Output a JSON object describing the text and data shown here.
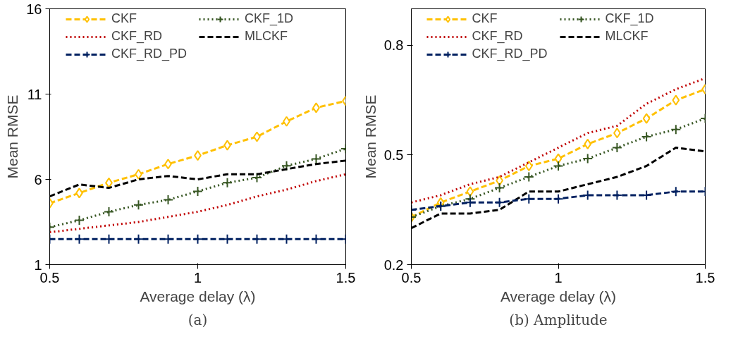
{
  "chart_data": [
    {
      "type": "line",
      "title": "(a)",
      "xlabel": "Average delay (λ)",
      "ylabel": "Mean RMSE",
      "x": [
        0.5,
        0.6,
        0.7,
        0.8,
        0.9,
        1.0,
        1.1,
        1.2,
        1.3,
        1.4,
        1.5
      ],
      "xlim": [
        0.5,
        1.5
      ],
      "xticks": [
        0.5,
        1,
        1.5
      ],
      "ylim": [
        1,
        16
      ],
      "yticks": [
        1,
        6,
        11,
        16
      ],
      "grid": false,
      "legend": "top",
      "series": [
        {
          "name": "CKF",
          "color": "#ffc000",
          "marker": "diamond",
          "line_style": "dashed",
          "values": [
            4.6,
            5.2,
            5.8,
            6.3,
            6.9,
            7.4,
            8.0,
            8.5,
            9.4,
            10.2,
            10.6
          ]
        },
        {
          "name": "CKF_1D",
          "color": "#375623",
          "marker": "cross",
          "line_style": "dotted",
          "values": [
            3.2,
            3.6,
            4.1,
            4.5,
            4.8,
            5.3,
            5.8,
            6.1,
            6.8,
            7.2,
            7.8
          ]
        },
        {
          "name": "CKF_RD",
          "color": "#c00000",
          "marker": "none",
          "line_style": "dotted",
          "values": [
            2.9,
            3.1,
            3.3,
            3.5,
            3.8,
            4.1,
            4.5,
            5.0,
            5.4,
            5.9,
            6.3
          ]
        },
        {
          "name": "MLCKF",
          "color": "#000000",
          "marker": "none",
          "line_style": "dashed",
          "values": [
            5.0,
            5.7,
            5.5,
            6.0,
            6.2,
            6.0,
            6.3,
            6.3,
            6.6,
            6.9,
            7.1
          ]
        },
        {
          "name": "CKF_RD_PD",
          "color": "#002060",
          "marker": "cross",
          "line_style": "dashed",
          "values": [
            2.5,
            2.5,
            2.5,
            2.5,
            2.5,
            2.5,
            2.5,
            2.5,
            2.5,
            2.5,
            2.5
          ]
        }
      ]
    },
    {
      "type": "line",
      "title": "(b) Amplitude",
      "xlabel": "Average delay (λ)",
      "ylabel": "Mean RMSE",
      "x": [
        0.5,
        0.6,
        0.7,
        0.8,
        0.9,
        1.0,
        1.1,
        1.2,
        1.3,
        1.4,
        1.5
      ],
      "xlim": [
        0.5,
        1.5
      ],
      "xticks": [
        0.5,
        1,
        1.5
      ],
      "ylim": [
        0.2,
        0.9
      ],
      "yticks": [
        0.2,
        0.5,
        0.8
      ],
      "grid": false,
      "legend": "top",
      "series": [
        {
          "name": "CKF",
          "color": "#ffc000",
          "marker": "diamond",
          "line_style": "dashed",
          "values": [
            0.33,
            0.37,
            0.4,
            0.43,
            0.47,
            0.49,
            0.53,
            0.56,
            0.6,
            0.65,
            0.68
          ]
        },
        {
          "name": "CKF_1D",
          "color": "#375623",
          "marker": "cross",
          "line_style": "dotted",
          "values": [
            0.33,
            0.36,
            0.38,
            0.41,
            0.44,
            0.47,
            0.49,
            0.52,
            0.55,
            0.57,
            0.6
          ]
        },
        {
          "name": "CKF_RD",
          "color": "#c00000",
          "marker": "none",
          "line_style": "dotted",
          "values": [
            0.37,
            0.39,
            0.42,
            0.44,
            0.48,
            0.52,
            0.56,
            0.58,
            0.64,
            0.68,
            0.71
          ]
        },
        {
          "name": "MLCKF",
          "color": "#000000",
          "marker": "none",
          "line_style": "dashed",
          "values": [
            0.3,
            0.34,
            0.34,
            0.35,
            0.4,
            0.4,
            0.42,
            0.44,
            0.47,
            0.52,
            0.51
          ]
        },
        {
          "name": "CKF_RD_PD",
          "color": "#002060",
          "marker": "cross",
          "line_style": "dashed",
          "values": [
            0.35,
            0.36,
            0.37,
            0.37,
            0.38,
            0.38,
            0.39,
            0.39,
            0.39,
            0.4,
            0.4
          ]
        }
      ]
    }
  ]
}
